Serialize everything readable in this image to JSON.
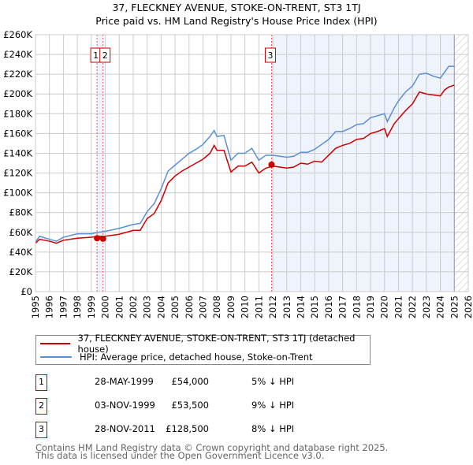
{
  "chart_data": {
    "type": "line",
    "title": "37, FLECKNEY AVENUE, STOKE-ON-TRENT, ST3 1TJ",
    "subtitle": "Price paid vs. HM Land Registry's House Price Index (HPI)",
    "xlim": [
      1995,
      2026
    ],
    "ylim": [
      0,
      260000
    ],
    "x_ticks": [
      "1995",
      "1996",
      "1997",
      "1998",
      "1999",
      "2000",
      "2001",
      "2002",
      "2003",
      "2004",
      "2005",
      "2006",
      "2007",
      "2008",
      "2009",
      "2010",
      "2011",
      "2012",
      "2013",
      "2014",
      "2015",
      "2016",
      "2017",
      "2018",
      "2019",
      "2020",
      "2021",
      "2022",
      "2023",
      "2024",
      "2025",
      "2026"
    ],
    "y_ticks": [
      "£0",
      "£20K",
      "£40K",
      "£60K",
      "£80K",
      "£100K",
      "£120K",
      "£140K",
      "£160K",
      "£180K",
      "£200K",
      "£220K",
      "£240K",
      "£260K"
    ],
    "grid": true,
    "series": [
      {
        "name": "37, FLECKNEY AVENUE, STOKE-ON-TRENT, ST3 1TJ (detached house)",
        "color": "#cc0000",
        "x": [
          1995,
          1995.3,
          1996,
          1996.5,
          1997,
          1998,
          1999,
          1999.5,
          2000,
          2001,
          2002,
          2002.5,
          2003,
          2003.5,
          2004,
          2004.5,
          2005,
          2005.5,
          2006,
          2006.5,
          2007,
          2007.5,
          2007.8,
          2008,
          2008.5,
          2009,
          2009.5,
          2010,
          2010.5,
          2011,
          2011.5,
          2012,
          2012.5,
          2013,
          2013.5,
          2014,
          2014.5,
          2015,
          2015.5,
          2016,
          2016.5,
          2017,
          2017.5,
          2018,
          2018.5,
          2019,
          2019.5,
          2020,
          2020.2,
          2020.7,
          2021,
          2021.5,
          2022,
          2022.5,
          2023,
          2023.5,
          2024,
          2024.3,
          2024.6,
          2025
        ],
        "y": [
          49,
          53,
          51,
          49,
          52,
          54,
          55,
          56,
          56,
          58,
          62,
          62,
          74,
          79,
          92,
          110,
          117,
          122,
          126,
          130,
          134,
          140,
          148,
          143,
          143,
          121,
          127,
          127,
          131,
          120,
          125,
          127,
          126,
          125,
          126,
          130,
          129,
          132,
          131,
          138,
          145,
          148,
          150,
          154,
          155,
          160,
          162,
          165,
          157,
          170,
          175,
          183,
          190,
          202,
          200,
          199,
          198,
          204,
          207,
          209
        ]
      },
      {
        "name": "HPI: Average price, detached house, Stoke-on-Trent",
        "color": "#5b8fd4",
        "x": [
          1995,
          1995.3,
          1996,
          1996.5,
          1997,
          1998,
          1999,
          1999.5,
          2000,
          2001,
          2002,
          2002.5,
          2003,
          2003.5,
          2004,
          2004.5,
          2005,
          2005.5,
          2006,
          2006.5,
          2007,
          2007.5,
          2007.8,
          2008,
          2008.5,
          2009,
          2009.5,
          2010,
          2010.5,
          2011,
          2011.5,
          2012,
          2012.5,
          2013,
          2013.5,
          2014,
          2014.5,
          2015,
          2015.5,
          2016,
          2016.5,
          2017,
          2017.5,
          2018,
          2018.5,
          2019,
          2019.5,
          2020,
          2020.2,
          2020.7,
          2021,
          2021.5,
          2022,
          2022.5,
          2023,
          2023.5,
          2024,
          2024.3,
          2024.6,
          2025
        ],
        "y": [
          50.5,
          56,
          53,
          51,
          55,
          58.5,
          58.5,
          60,
          61,
          64,
          68,
          69,
          81,
          89,
          104,
          122,
          128,
          134,
          140,
          144,
          149,
          157,
          163,
          157,
          158,
          133,
          140,
          140,
          145,
          133,
          138,
          138,
          137,
          136,
          137,
          141,
          141,
          144,
          149,
          154,
          162,
          162,
          165,
          169,
          170,
          176,
          178,
          180,
          172,
          186,
          193,
          202,
          208,
          220,
          221,
          218,
          216,
          222,
          228,
          228
        ]
      }
    ],
    "y_unit": "thousands GBP",
    "sales": [
      {
        "id": "1",
        "x": 1999.41,
        "value": 54000
      },
      {
        "id": "2",
        "x": 1999.84,
        "value": 53500
      },
      {
        "id": "3",
        "x": 2011.91,
        "value": 128500
      }
    ],
    "shaded_ranges": [
      [
        1999.41,
        1999.84
      ],
      [
        2011.91,
        2025.0
      ]
    ],
    "hatched_from": 2025.0,
    "legend": "bottom"
  },
  "table": [
    {
      "id": "1",
      "date": "28-MAY-1999",
      "price": "£54,000",
      "hpi": "5% ↓ HPI"
    },
    {
      "id": "2",
      "date": "03-NOV-1999",
      "price": "£53,500",
      "hpi": "9% ↓ HPI"
    },
    {
      "id": "3",
      "date": "28-NOV-2011",
      "price": "£128,500",
      "hpi": "8% ↓ HPI"
    }
  ],
  "footer": [
    "Contains HM Land Registry data © Crown copyright and database right 2025.",
    "This data is licensed under the Open Government Licence v3.0."
  ]
}
